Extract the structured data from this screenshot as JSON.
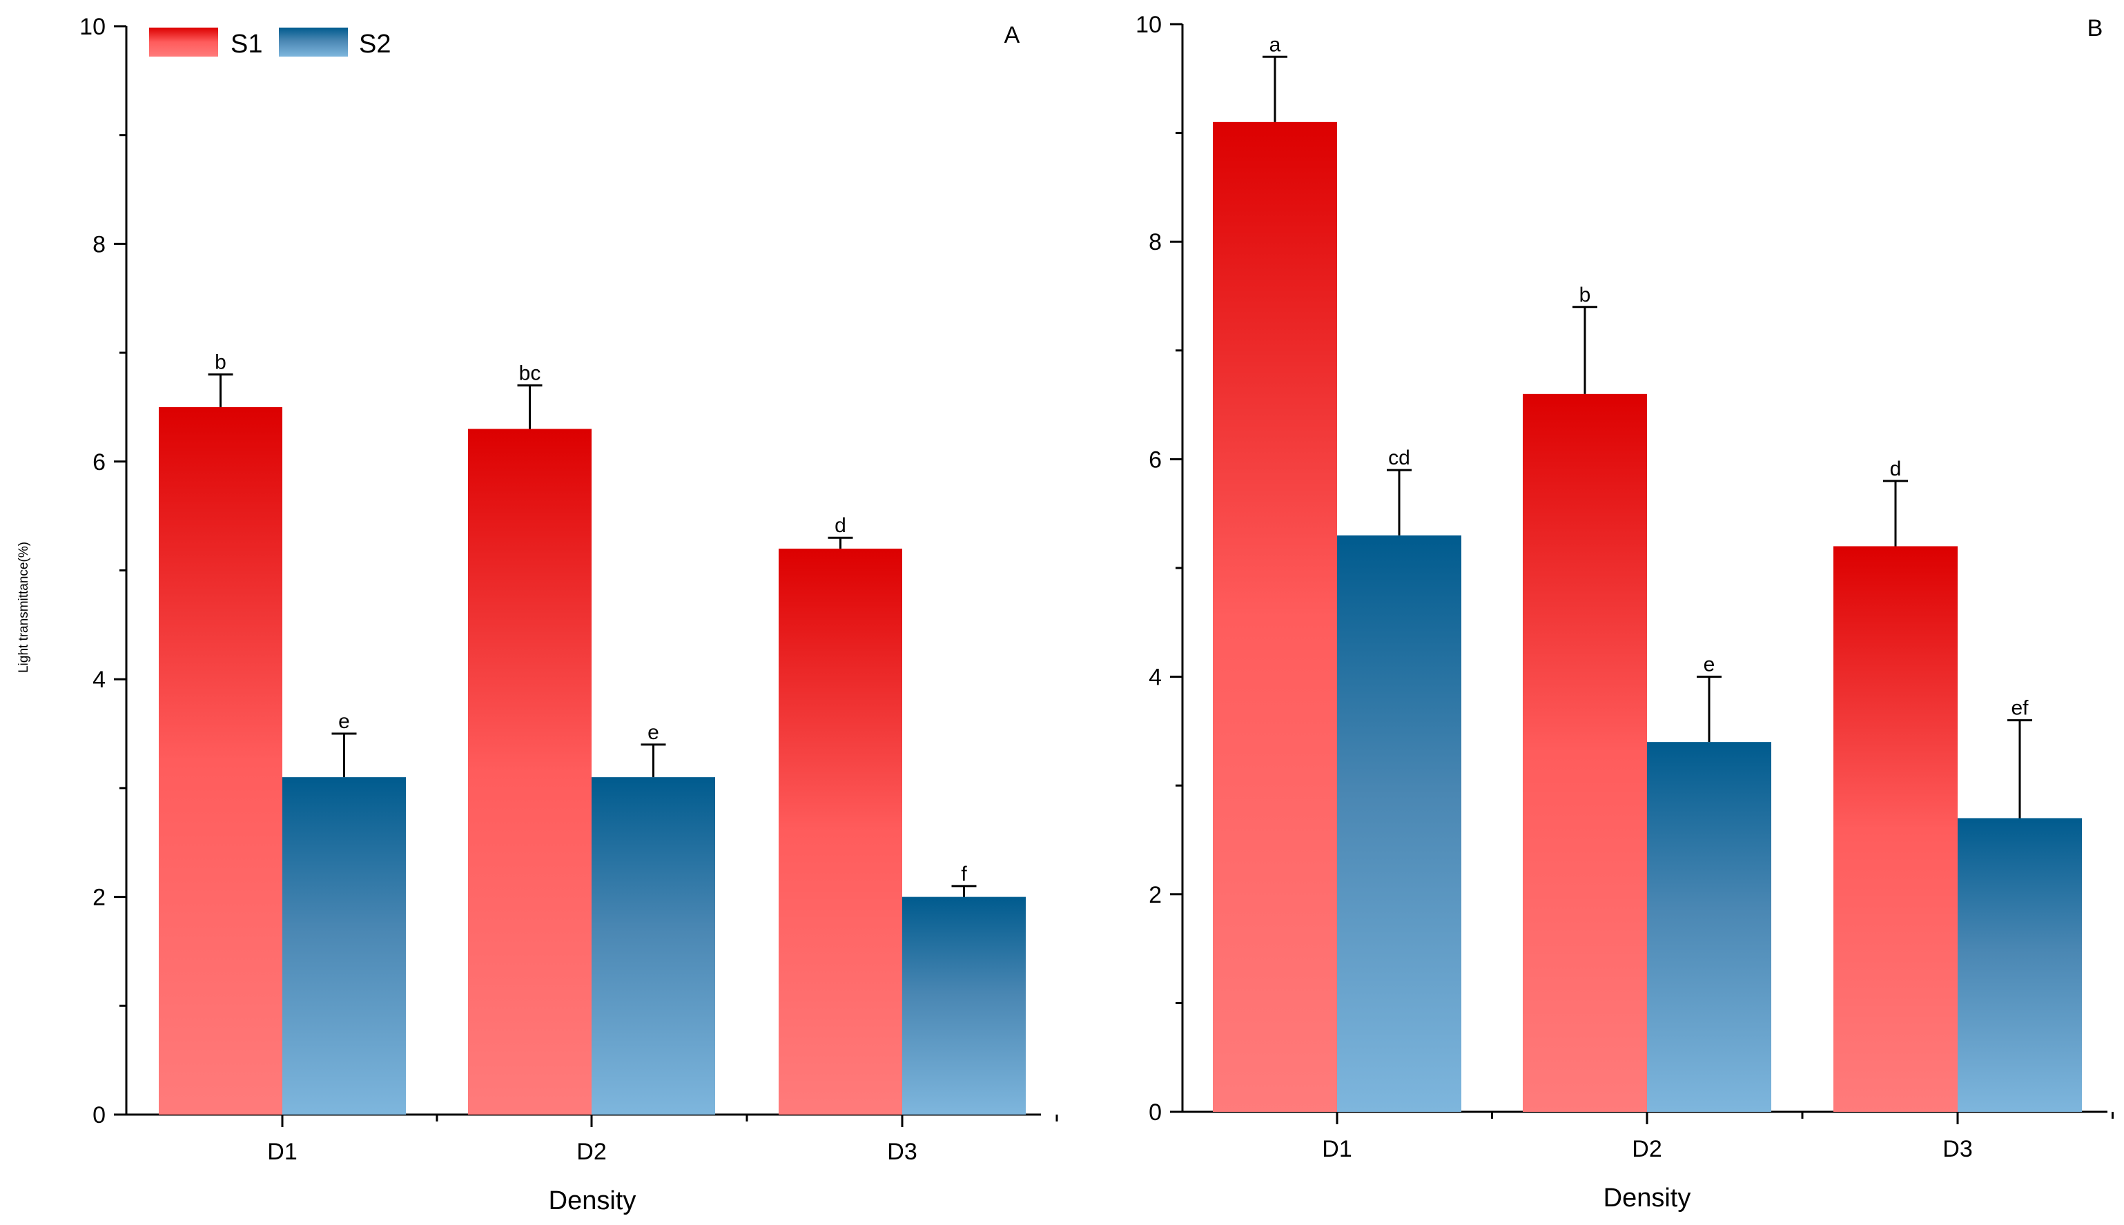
{
  "chart_data": [
    {
      "panel": "A",
      "type": "bar",
      "xlabel": "Density",
      "ylabel": "Light transmittance(%)",
      "ylim": [
        0,
        10
      ],
      "yticks": [
        "0",
        "2",
        "4",
        "6",
        "8",
        "10"
      ],
      "categories": [
        "D1",
        "D2",
        "D3"
      ],
      "legend": {
        "position": "top-left",
        "entries": [
          "S1",
          "S2"
        ]
      },
      "series": [
        {
          "name": "S1",
          "values": [
            6.5,
            6.3,
            5.2
          ],
          "errors": [
            0.3,
            0.4,
            0.1
          ],
          "letters": [
            "b",
            "bc",
            "d"
          ]
        },
        {
          "name": "S2",
          "values": [
            3.1,
            3.1,
            2.0
          ],
          "errors": [
            0.4,
            0.3,
            0.1
          ],
          "letters": [
            "e",
            "e",
            "f"
          ]
        }
      ]
    },
    {
      "panel": "B",
      "type": "bar",
      "xlabel": "Density",
      "ylabel": "",
      "ylim": [
        0,
        10
      ],
      "yticks": [
        "0",
        "2",
        "4",
        "6",
        "8",
        "10"
      ],
      "categories": [
        "D1",
        "D2",
        "D3"
      ],
      "series": [
        {
          "name": "S1",
          "values": [
            9.1,
            6.6,
            5.2
          ],
          "errors": [
            0.6,
            0.8,
            0.6
          ],
          "letters": [
            "a",
            "b",
            "d"
          ]
        },
        {
          "name": "S2",
          "values": [
            5.3,
            3.4,
            2.7
          ],
          "errors": [
            0.6,
            0.6,
            0.9
          ],
          "letters": [
            "cd",
            "e",
            "ef"
          ]
        }
      ]
    }
  ],
  "colors": {
    "s1_top": "#dc0000",
    "s1_mid": "#ff5c5c",
    "s1_bottom": "#ff7b7b",
    "s2_top": "#005b8e",
    "s2_mid": "#4a87b3",
    "s2_bottom": "#7eb6dd",
    "axis": "#000000"
  }
}
